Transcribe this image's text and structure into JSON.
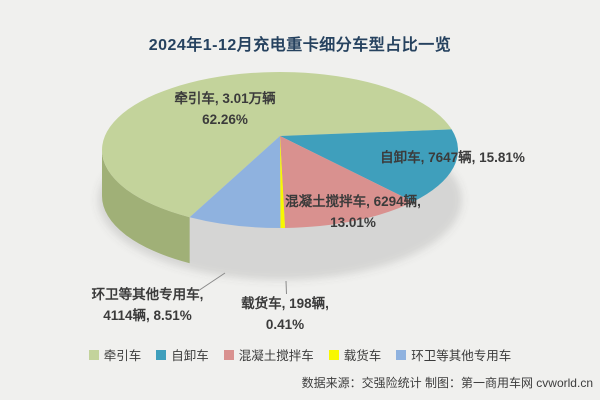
{
  "title": "2024年1-12月充电重卡细分车型占比一览",
  "chart_data": {
    "type": "pie",
    "style": "3d-pie",
    "title": "2024年1-12月充电重卡细分车型占比一览",
    "unit": "辆",
    "total_pct": 100.0,
    "start_angle_deg_cw_from_top": 210.5,
    "legend_position": "bottom",
    "slices": [
      {
        "name": "牵引车",
        "value": 30100,
        "value_label": "3.01万辆",
        "pct": 62.26,
        "color": "#c3d39b",
        "side_color": "#a0b077"
      },
      {
        "name": "自卸车",
        "value": 7647,
        "value_label": "7647辆",
        "pct": 15.81,
        "color": "#3f9fbc",
        "side_color": "#1e5f6e"
      },
      {
        "name": "混凝土搅拌车",
        "value": 6294,
        "value_label": "6294辆",
        "pct": 13.01,
        "color": "#d9918f",
        "side_color": "#764e4e"
      },
      {
        "name": "载货车",
        "value": 198,
        "value_label": "198辆",
        "pct": 0.41,
        "color": "#f8f800",
        "side_color": "#a9a900"
      },
      {
        "name": "环卫等其他专用车",
        "value": 4114,
        "value_label": "4114辆",
        "pct": 8.51,
        "color": "#8fb2df",
        "side_color": "#607ea8"
      }
    ]
  },
  "labels": {
    "tractor_line1": "牵引车, 3.01万辆",
    "tractor_line2": "62.26%",
    "dump_line1": "自卸车, 7647辆, 15.81%",
    "mixer_line1": "混凝土搅拌车, 6294辆,",
    "mixer_line2": "13.01%",
    "cargo_line1": "载货车, 198辆,",
    "cargo_line2": "0.41%",
    "sanitation_line1": "环卫等其他专用车,",
    "sanitation_line2": "4114辆, 8.51%"
  },
  "footer": "数据来源：交强险统计 制图：第一商用车网 cvworld.cn"
}
